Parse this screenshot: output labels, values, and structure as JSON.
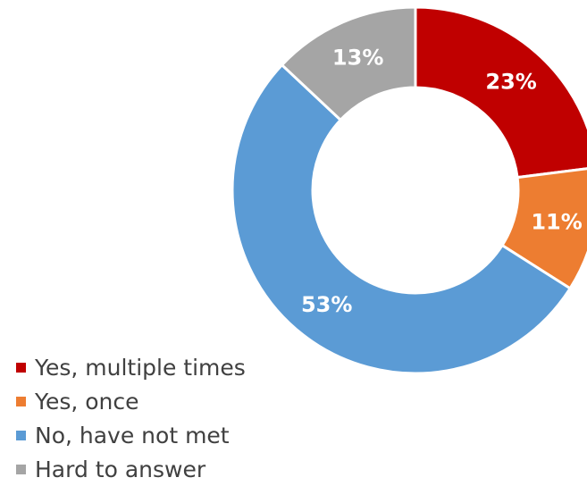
{
  "chart_data": {
    "type": "pie",
    "variant": "donut",
    "title": "",
    "categories": [
      "Yes, multiple times",
      "Yes, once",
      "No, have not met",
      "Hard to answer"
    ],
    "values": [
      23,
      11,
      53,
      13
    ],
    "value_labels": [
      "23%",
      "11%",
      "53%",
      "13%"
    ],
    "unit": "%",
    "colors": [
      "#C00000",
      "#ED7D31",
      "#5B9BD5",
      "#A5A5A5"
    ],
    "start_angle": "12 o'clock",
    "direction": "clockwise",
    "legend": {
      "position": "bottom-left",
      "items": [
        {
          "label": "Yes, multiple times",
          "color": "#C00000"
        },
        {
          "label": "Yes, once",
          "color": "#ED7D31"
        },
        {
          "label": "No, have not met",
          "color": "#5B9BD5"
        },
        {
          "label": "Hard to answer",
          "color": "#A5A5A5"
        }
      ]
    }
  }
}
